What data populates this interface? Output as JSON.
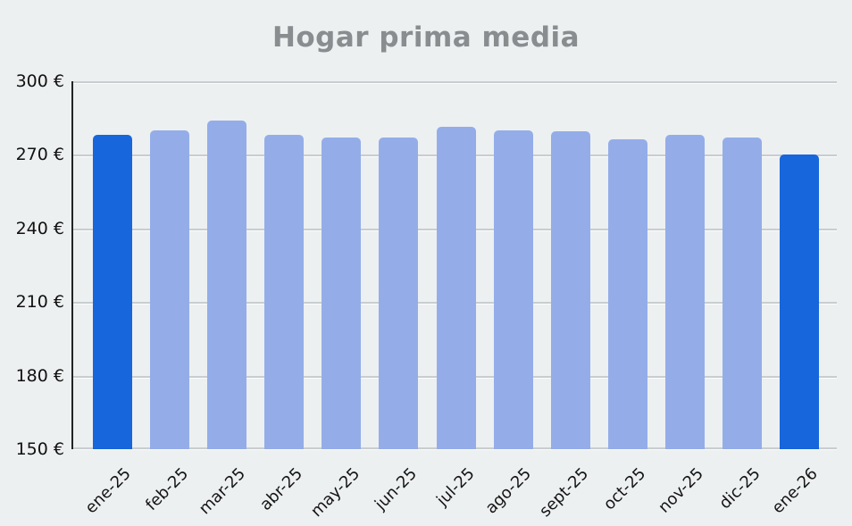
{
  "chart_data": {
    "type": "bar",
    "title": "Hogar prima media",
    "categories": [
      "ene-25",
      "feb-25",
      "mar-25",
      "abr-25",
      "may-25",
      "jun-25",
      "jul-25",
      "ago-25",
      "sept-25",
      "oct-25",
      "nov-25",
      "dic-25",
      "ene-26"
    ],
    "values": [
      278,
      280,
      284,
      278,
      277,
      277,
      281.5,
      280,
      279.5,
      276.5,
      278,
      277,
      270
    ],
    "unit": "€",
    "ylim": [
      150,
      300
    ],
    "ytick_step": 30,
    "ytick_labels": [
      "150 €",
      "180 €",
      "210 €",
      "240 €",
      "270 €",
      "300 €"
    ],
    "xlabel": "",
    "ylabel": "",
    "grid": true,
    "legend": "none",
    "highlight_indices": [
      0,
      12
    ],
    "colors": {
      "bar": "#94ade9",
      "bar_highlight": "#1766db",
      "background": "#edf0f1",
      "gridline": "#c9cdcf",
      "axis_line": "#212324",
      "title_text": "#898d8f",
      "tick_text": "#141414"
    }
  }
}
